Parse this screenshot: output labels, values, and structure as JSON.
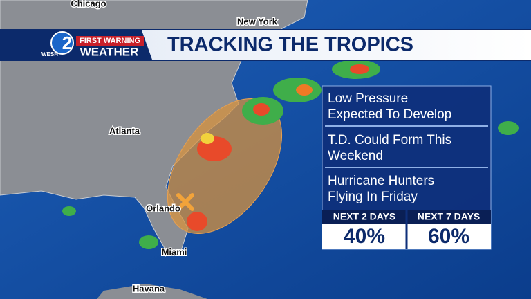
{
  "header": {
    "logo_station": "WESH",
    "logo_number": "2",
    "logo_top": "FIRST WARNING",
    "logo_bottom": "WEATHER",
    "title": "TRACKING THE TROPICS"
  },
  "map": {
    "cities": [
      "Chicago",
      "New York",
      "Atlanta",
      "Orlando",
      "Miami",
      "Havana"
    ]
  },
  "outlook": {
    "items": [
      [
        "Low Pressure",
        "Expected To Develop"
      ],
      [
        "T.D. Could Form This",
        "Weekend"
      ],
      [
        "Hurricane Hunters",
        "Flying In Friday"
      ]
    ],
    "chances": [
      {
        "label": "NEXT 2 DAYS",
        "value": "40%"
      },
      {
        "label": "NEXT 7 DAYS",
        "value": "60%"
      }
    ]
  }
}
